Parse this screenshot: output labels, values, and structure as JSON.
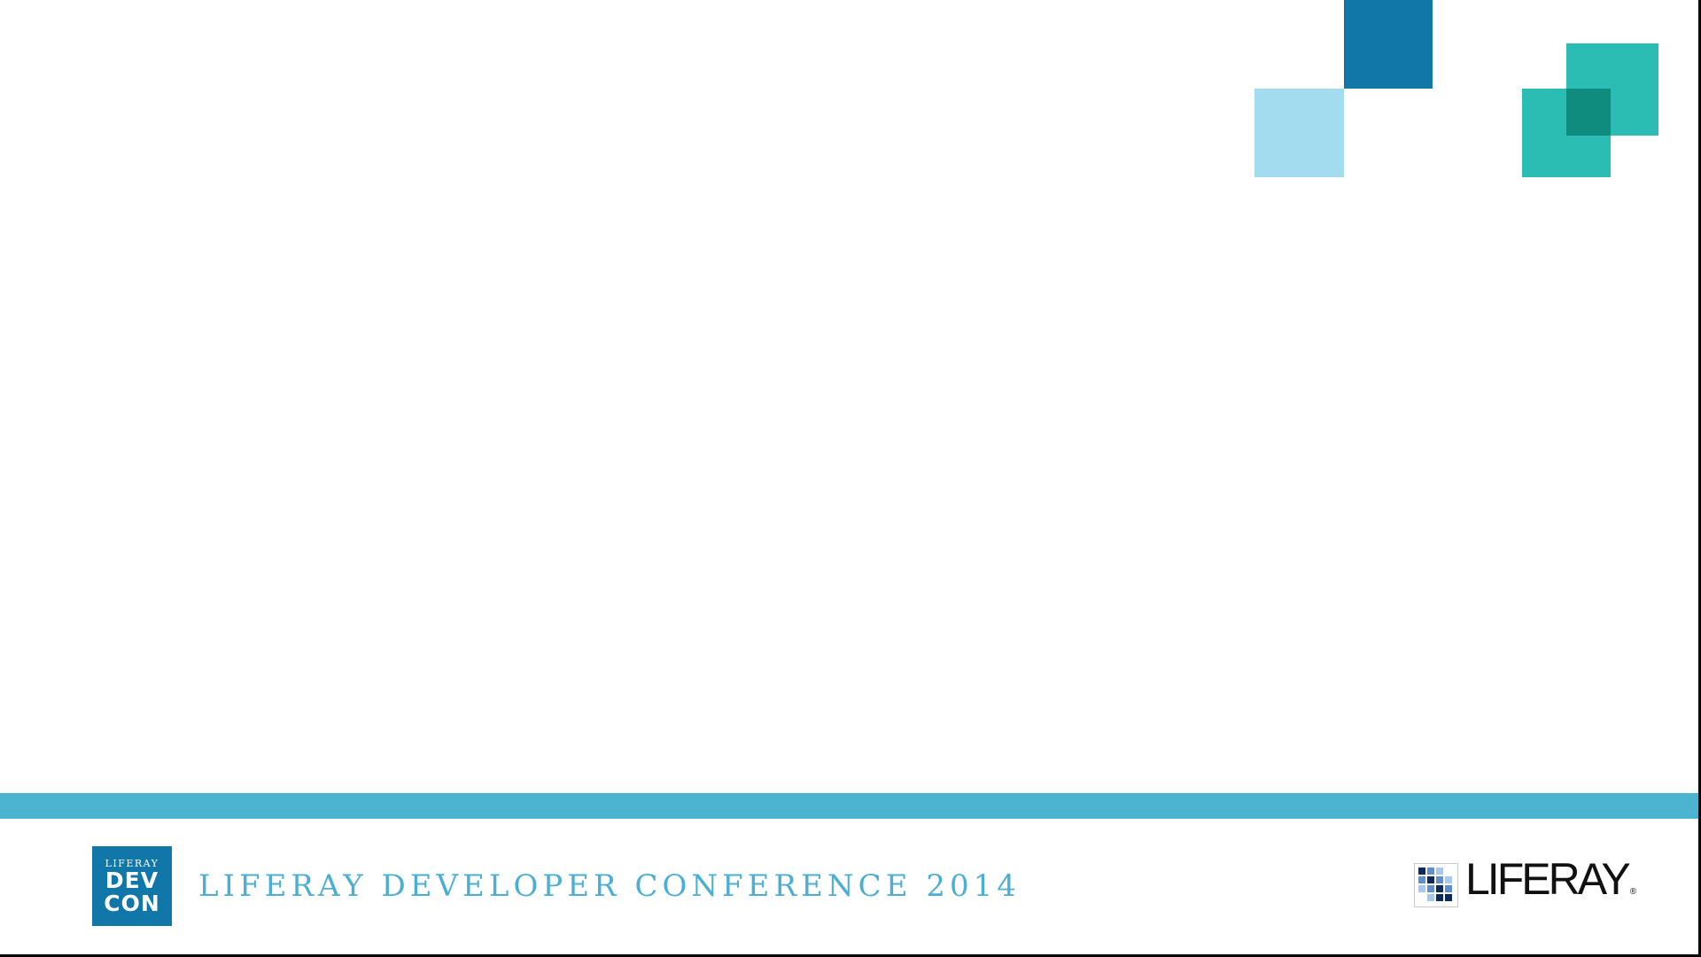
{
  "slide": {
    "background": "#ffffff"
  },
  "decor": {
    "dark_blue": "#1177a8",
    "light_blue": "#a3dcee",
    "teal": "#2bbdb3",
    "teal_overlap": "#0f8c7d"
  },
  "footer": {
    "bar_color": "#4cb3d1",
    "title_color": "#4aafd3",
    "conference_title": "LIFERAY DEVELOPER CONFERENCE 2014"
  },
  "devcon_logo": {
    "background": "#1177a8",
    "top_text": "LIFERAY",
    "line1": "DEV",
    "line2": "CON"
  },
  "liferay_logo": {
    "wordmark": "LIFERAY",
    "registered": "®",
    "text_color": "#111111",
    "mark_dark": "#0e2a5c",
    "mark_mid": "#5f8fd0",
    "mark_light": "#a9c8ef"
  }
}
